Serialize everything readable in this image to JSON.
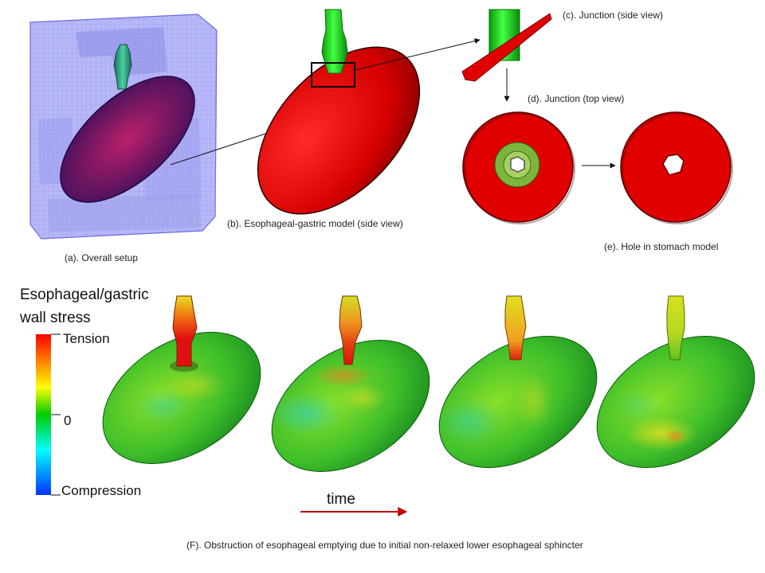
{
  "panels": {
    "a": {
      "caption": "(a). Overall setup"
    },
    "b": {
      "caption": "(b). Esophageal-gastric model (side view)"
    },
    "c": {
      "caption": "(c).  Junction (side view)"
    },
    "d": {
      "caption": "(d).  Junction (top view)"
    },
    "e": {
      "caption": "(e).  Hole in  stomach model"
    },
    "f": {
      "caption": "(F).  Obstruction of esophageal emptying due to initial non-relaxed lower esophageal sphincter"
    }
  },
  "legend": {
    "title_line1": "Esophageal/gastric",
    "title_line2": "wall stress",
    "top_label": "Tension",
    "mid_label": "0",
    "bottom_label": "Compression",
    "gradient_colors": [
      "#ff0000",
      "#ff8a00",
      "#ffff00",
      "#00cc00",
      "#00ffff",
      "#0033ff"
    ]
  },
  "time_axis": {
    "label": "time",
    "arrow_color": "#c00000"
  },
  "colors": {
    "stomach_red": "#e00000",
    "esophagus_green": "#22dd22",
    "mesh_blue": "#7777ee",
    "stress_green": "#3fbf2a"
  },
  "icons": {
    "magnify_box": "square-outline",
    "arrows": "arrow"
  }
}
